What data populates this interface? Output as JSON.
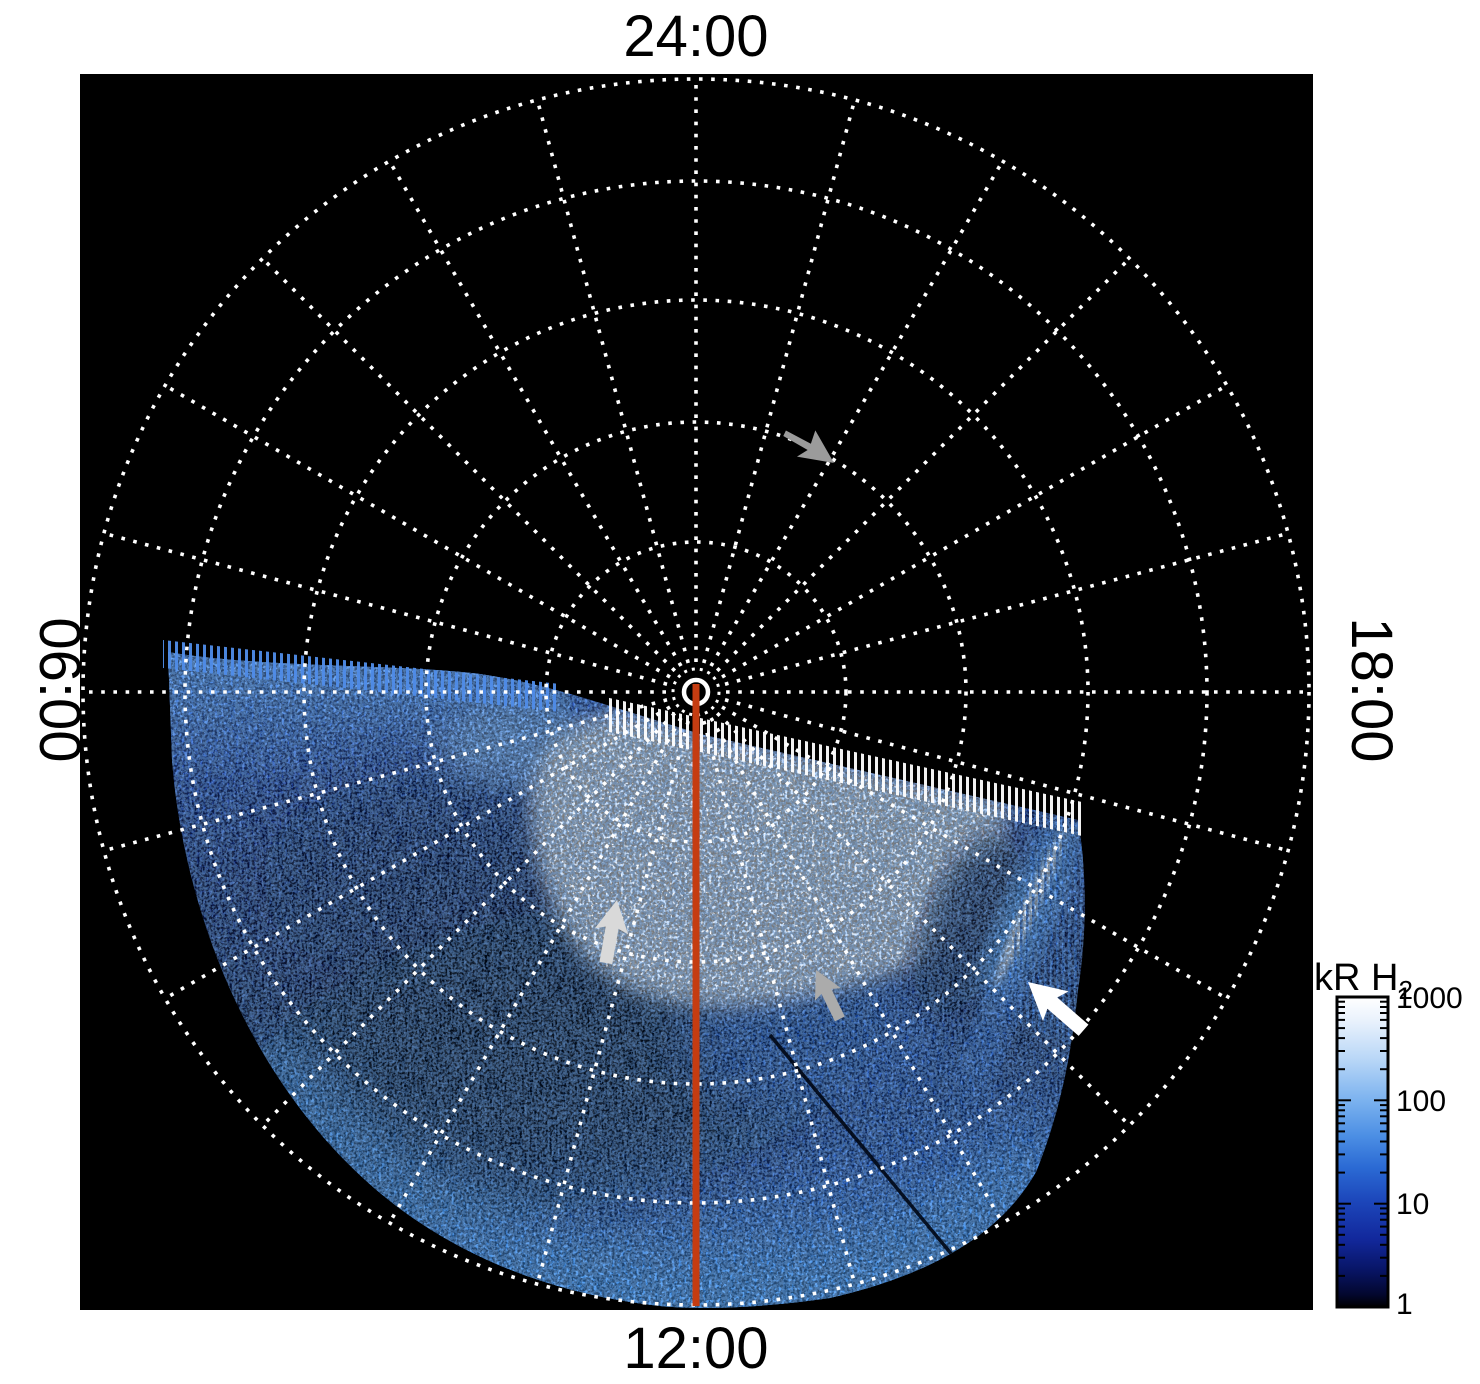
{
  "figure_labels": {
    "top": "24:00",
    "right": "18:00",
    "bottom": "12:00",
    "left": "06:00"
  },
  "colorbar": {
    "title": "kR H",
    "title_sub": "2",
    "ticks": [
      "1000",
      "100",
      "10",
      "1"
    ],
    "scale": "log"
  },
  "colors": {
    "page_bg": "#ffffff",
    "plot_bg": "#000000",
    "grid": "#ffffff",
    "meridian_line": "#c53c11",
    "arrow_gray": "#9b9b9b",
    "arrow_light_gray": "#d9d9d9",
    "arrow_mid_gray": "#ababab",
    "arrow_white": "#ffffff",
    "aurora_bright_blue": "#3f93ea",
    "aurora_dark_blue": "#0a1c55"
  },
  "chart_data": {
    "type": "heatmap",
    "projection": "polar-local-time",
    "angular_tick_labels": [
      "24:00",
      "06:00",
      "12:00",
      "18:00"
    ],
    "angular_gridline_interval_deg": 15,
    "radial_gridline_circles": 5,
    "colorbar": {
      "title": "kR H2",
      "scale": "log",
      "min": 1,
      "max": 1000,
      "tick_values": [
        1000,
        100,
        10,
        1
      ],
      "colormap": [
        "#000000",
        "#0a1c80",
        "#2b6ad4",
        "#7db3ef",
        "#ffffff"
      ]
    },
    "image_features": [
      "diffuse speckled blue emission filling the dawn-through-noon lower half of the polar map",
      "saturated white emission patch centered near the 10:00-14:00 sector at mid radii with comb-like upper edge",
      "narrow tilted bright arc near the 15:00-16:00 sector marked by a white arrow",
      "red meridian line from the pole toward 12:00",
      "three gray arrows marking fainter features"
    ]
  }
}
